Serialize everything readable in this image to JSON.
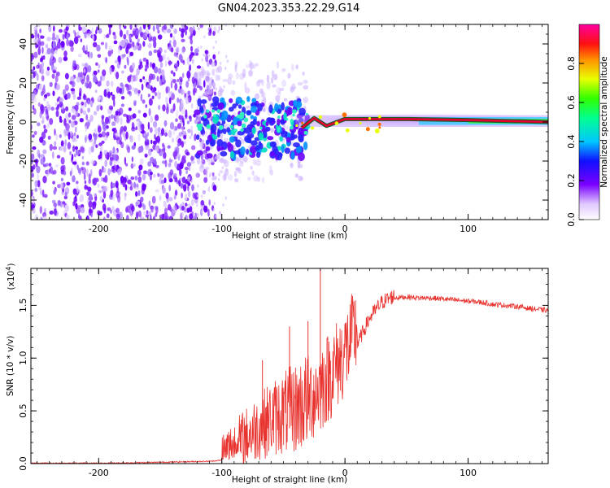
{
  "title": "GN04.2023.353.22.29.G14",
  "colors": {
    "snr_line": "#e8322e",
    "ridge": "#e60032",
    "ridge_edge": "#1e5a28"
  },
  "chart_data": [
    {
      "type": "heatmap",
      "xlabel": "Height of straight line (km)",
      "ylabel": "Frequency (Hz)",
      "xlim": [
        -255,
        165
      ],
      "ylim": [
        -50,
        50
      ],
      "x_ticks": [
        -200,
        -100,
        0,
        100
      ],
      "x_tick_labels": [
        "-200",
        "-100",
        "0",
        "100"
      ],
      "y_ticks": [
        -40,
        -20,
        0,
        20,
        40
      ],
      "y_tick_labels": [
        "-40",
        "-20",
        "0",
        "20",
        "40"
      ],
      "colorbar": {
        "label": "Normalized spectral amplitude",
        "range": [
          0,
          1
        ],
        "ticks": [
          0.0,
          0.2,
          0.4,
          0.6,
          0.8
        ],
        "tick_labels": [
          "0.0",
          "0.2",
          "0.4",
          "0.6",
          "0.8"
        ],
        "colormap": "rainbow-white-violet-red"
      },
      "features": {
        "noise_region_x": [
          -255,
          -115
        ],
        "scatter_region_x": [
          -120,
          -30
        ],
        "scatter_region_y": [
          -18,
          12
        ],
        "ridge": [
          {
            "x": -35,
            "y": -3
          },
          {
            "x": -25,
            "y": 2
          },
          {
            "x": -15,
            "y": -2
          },
          {
            "x": 0,
            "y": 1.5
          },
          {
            "x": 50,
            "y": 1.5
          },
          {
            "x": 100,
            "y": 1
          },
          {
            "x": 165,
            "y": 0
          }
        ]
      }
    },
    {
      "type": "line",
      "xlabel": "Height of straight line (km)",
      "ylabel": "SNR (10 * v/v)",
      "scale_label": "(x10",
      "scale_exponent": "4",
      "scale_close": ")",
      "xlim": [
        -255,
        165
      ],
      "ylim": [
        0,
        1.85
      ],
      "x_ticks": [
        -200,
        -100,
        0,
        100
      ],
      "x_tick_labels": [
        "-200",
        "-100",
        "0",
        "100"
      ],
      "y_ticks": [
        0.0,
        0.5,
        1.0,
        1.5
      ],
      "y_tick_labels": [
        "0.0",
        "0.5",
        "1.0",
        "1.5"
      ],
      "series": [
        {
          "x": [
            -255,
            -200,
            -150,
            -110,
            -100,
            -90,
            -80,
            -70,
            -60,
            -50,
            -40,
            -30,
            -20,
            -10,
            0,
            10,
            20,
            30,
            40,
            50,
            60,
            70,
            80,
            90,
            100,
            110,
            120,
            130,
            140,
            150,
            165
          ],
          "y": [
            0.0,
            0.0,
            0.01,
            0.02,
            0.03,
            0.08,
            0.15,
            0.22,
            0.28,
            0.32,
            0.35,
            0.42,
            0.55,
            0.7,
            0.88,
            1.1,
            1.35,
            1.5,
            1.56,
            1.57,
            1.56,
            1.56,
            1.55,
            1.54,
            1.53,
            1.52,
            1.5,
            1.49,
            1.48,
            1.46,
            1.44
          ]
        }
      ],
      "spikes": [
        {
          "x": -20,
          "y": 1.86
        },
        {
          "x": -30,
          "y": 1.35
        },
        {
          "x": -45,
          "y": 1.3
        },
        {
          "x": -67,
          "y": 0.98
        },
        {
          "x": -85,
          "y": 0.25
        }
      ]
    }
  ]
}
